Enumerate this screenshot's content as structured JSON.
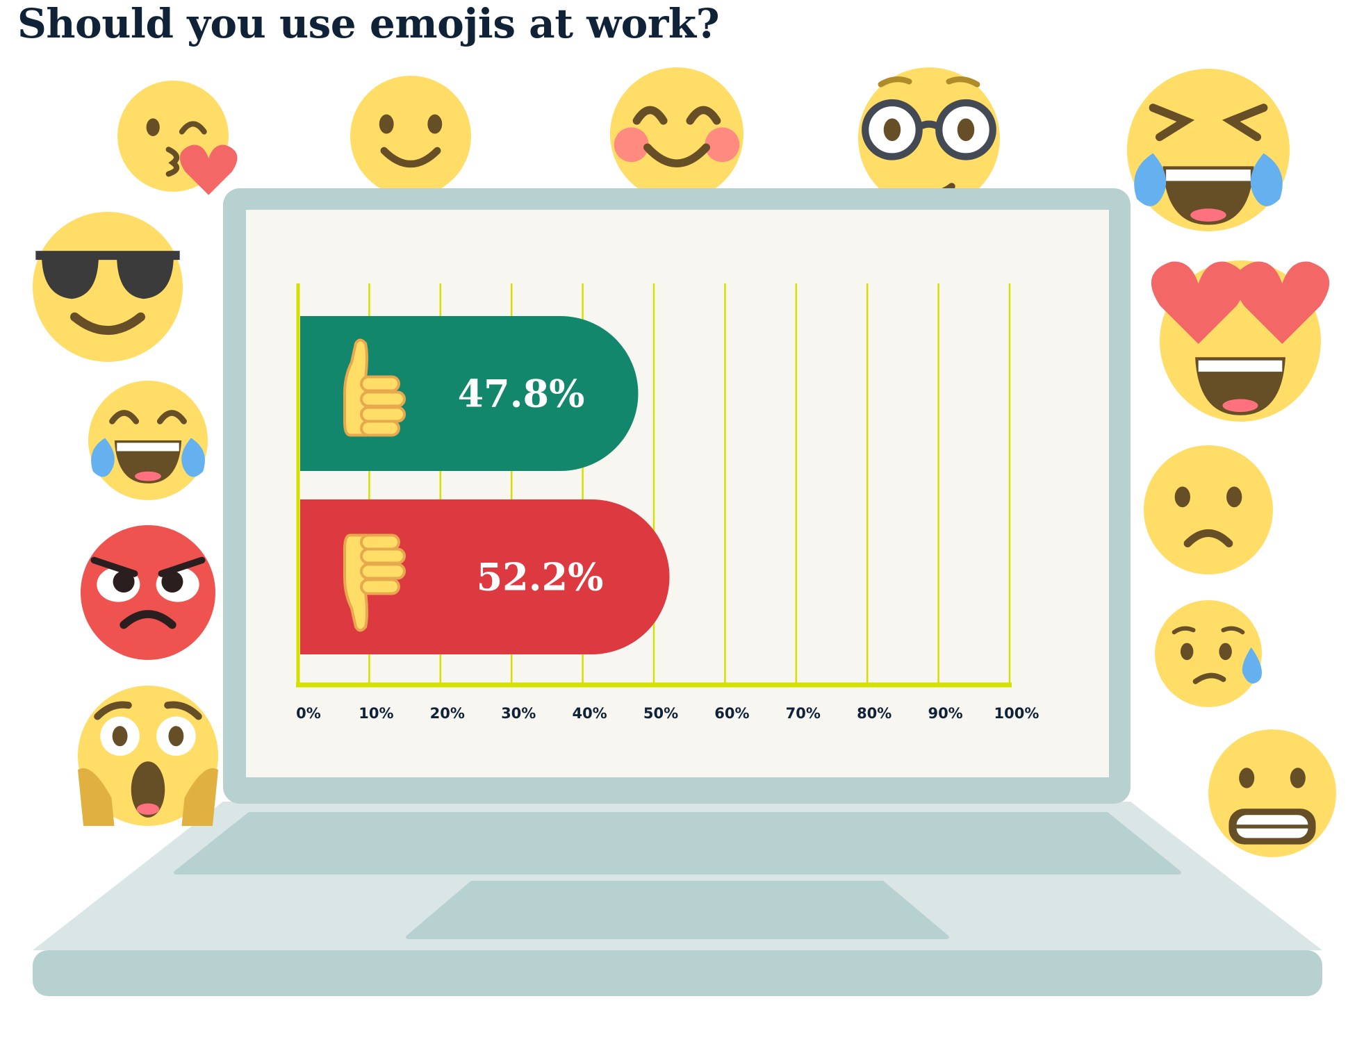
{
  "title": "Should you use emojis at work?",
  "colors": {
    "yes": "#12876c",
    "no": "#dc3a40",
    "grid": "#d4e100",
    "screen": "#f7f6f1",
    "laptop": "#b7d1d1",
    "laptop_light": "#d9e6e5",
    "emoji_face": "#ffdd67"
  },
  "emojis": [
    "kissing-heart",
    "smiling",
    "blushing",
    "nerd-glasses",
    "tears-of-joy",
    "sunglasses",
    "heart-eyes",
    "tears-of-joy-small",
    "frowning",
    "angry",
    "sad-sweat",
    "screaming",
    "grimacing"
  ],
  "chart_data": {
    "type": "bar",
    "orientation": "horizontal",
    "categories": [
      "thumbs-up",
      "thumbs-down"
    ],
    "values": [
      47.8,
      52.2
    ],
    "data_labels": [
      "47.8%",
      "52.2%"
    ],
    "xlim": [
      0,
      100
    ],
    "xticks": [
      "0%",
      "10%",
      "20%",
      "30%",
      "40%",
      "50%",
      "60%",
      "70%",
      "80%",
      "90%",
      "100%"
    ],
    "grid": true,
    "legend": "none"
  }
}
